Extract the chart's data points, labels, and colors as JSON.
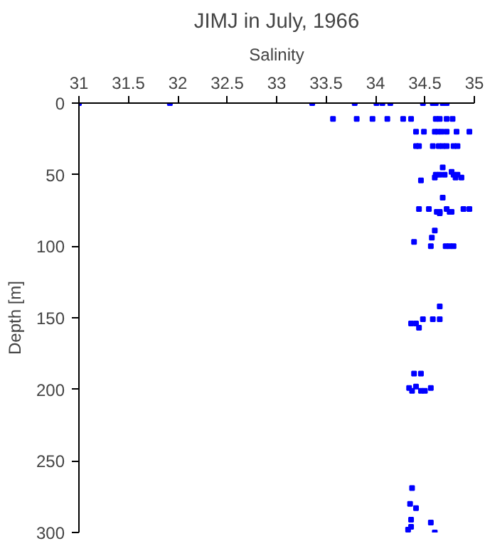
{
  "chart_data": {
    "type": "scatter",
    "title": "JIMJ in July, 1966",
    "xlabel": "Salinity",
    "ylabel": "Depth [m]",
    "xlim": [
      31,
      35
    ],
    "xticks": [
      31,
      31.5,
      32,
      32.5,
      33,
      33.5,
      34,
      34.5,
      35
    ],
    "ylim": [
      300,
      0
    ],
    "yticks": [
      0,
      50,
      100,
      150,
      200,
      250,
      300
    ],
    "grid": false,
    "marker": "square",
    "series": [
      {
        "color": "#0000ff",
        "x": [
          31.0,
          31.92,
          33.36,
          33.79,
          34.01,
          34.07,
          34.15,
          34.48,
          34.58,
          34.61,
          34.68,
          34.72,
          33.57,
          33.81,
          33.97,
          34.12,
          34.28,
          34.36,
          34.61,
          34.65,
          34.72,
          34.78,
          34.41,
          34.49,
          34.6,
          34.63,
          34.67,
          34.72,
          34.82,
          34.95,
          34.41,
          34.44,
          34.58,
          34.64,
          34.68,
          34.72,
          34.79,
          34.83,
          34.68,
          34.77,
          34.61,
          34.65,
          34.7,
          34.79,
          34.83,
          34.6,
          34.81,
          34.87,
          34.46,
          34.68,
          34.44,
          34.54,
          34.72,
          34.89,
          34.95,
          34.62,
          34.65,
          34.75,
          34.77,
          34.65,
          34.6,
          34.57,
          34.39,
          34.56,
          34.71,
          34.75,
          34.79,
          34.65,
          34.48,
          34.58,
          34.65,
          34.36,
          34.41,
          34.44,
          34.39,
          34.46,
          34.41,
          34.34,
          34.56,
          34.37,
          34.46,
          34.5,
          34.37,
          34.35,
          34.41,
          34.36,
          34.56,
          34.36,
          34.33,
          34.6
        ],
        "values": [
          0,
          0,
          0,
          0,
          0,
          0,
          0,
          0,
          0,
          0,
          0,
          0,
          11,
          11,
          11,
          11,
          11,
          11,
          11,
          11,
          11,
          11,
          20,
          20,
          20,
          20,
          20,
          20,
          20,
          20,
          30,
          30,
          30,
          30,
          30,
          30,
          30,
          30,
          45,
          48,
          50,
          50,
          50,
          50,
          50,
          52,
          52,
          52,
          54,
          66,
          74,
          74,
          74,
          74,
          74,
          76,
          76,
          76,
          76,
          77,
          89,
          94,
          97,
          100,
          100,
          100,
          100,
          142,
          151,
          151,
          151,
          154,
          154,
          157,
          189,
          189,
          198,
          199,
          199,
          201,
          201,
          201,
          269,
          280,
          283,
          291,
          293,
          296,
          298,
          300
        ]
      }
    ]
  }
}
